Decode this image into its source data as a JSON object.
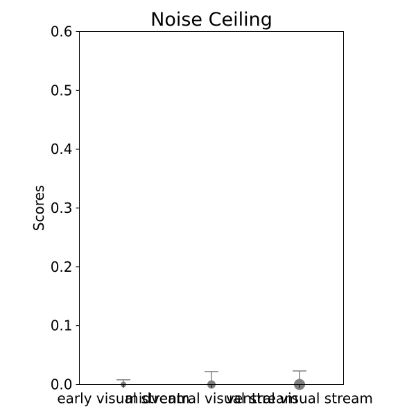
{
  "chart_data": {
    "type": "scatter",
    "title": "Noise Ceiling",
    "xlabel": "",
    "ylabel": "Scores",
    "ylim": [
      0,
      0.6
    ],
    "yticks": [
      "0.0",
      "0.1",
      "0.2",
      "0.3",
      "0.4",
      "0.5",
      "0.6"
    ],
    "categories": [
      "early visual stream",
      "midventral visual stream",
      "ventral visual stream"
    ],
    "series": [
      {
        "values": [
          0.0,
          0.0,
          0.0
        ],
        "error_upper": [
          0.008,
          0.022,
          0.023
        ]
      }
    ],
    "grid": false,
    "colors": {
      "marker": "#808080",
      "errorbar": "#808080",
      "axis": "#000000"
    }
  }
}
